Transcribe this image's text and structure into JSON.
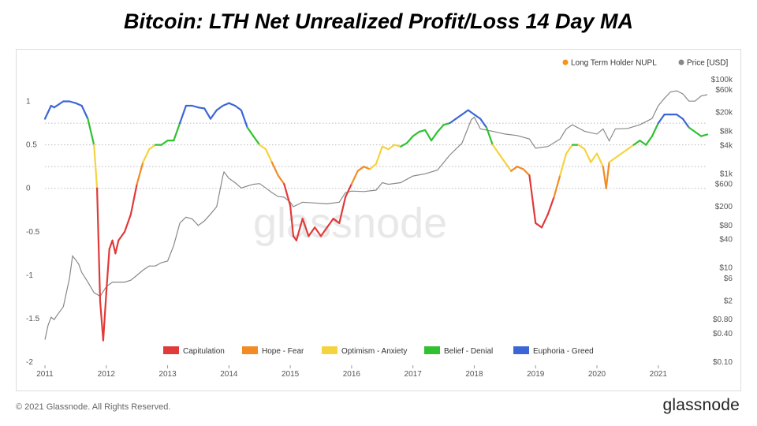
{
  "title": "Bitcoin: LTH Net Unrealized Profit/Loss 14 Day MA",
  "footer": {
    "copyright": "© 2021 Glassnode. All Rights Reserved.",
    "logo": "glassnode"
  },
  "watermark": "glassnode",
  "chart_data": {
    "type": "line",
    "left_axis": {
      "ticks": [
        1,
        0.5,
        0,
        -0.5,
        -1,
        -1.5,
        -2
      ],
      "tick_labels": [
        "1",
        "0.5",
        "0",
        "-0.5",
        "-1",
        "-1.5",
        "-2"
      ],
      "range": [
        -2,
        1.25
      ]
    },
    "right_axis": {
      "scale": "log",
      "tick_values": [
        100000,
        60000,
        20000,
        8000,
        4000,
        1000,
        600,
        200,
        80,
        40,
        10,
        6,
        2,
        0.8,
        0.4,
        0.1
      ],
      "tick_labels": [
        "$100k",
        "$60k",
        "$20k",
        "$8k",
        "$4k",
        "$1k",
        "$600",
        "$200",
        "$80",
        "$40",
        "$10",
        "$6",
        "$2",
        "$0.80",
        "$0.40",
        "$0.10"
      ],
      "range": [
        0.1,
        100000
      ]
    },
    "x_axis": {
      "tick_labels": [
        "2011",
        "2012",
        "2013",
        "2014",
        "2015",
        "2016",
        "2017",
        "2018",
        "2019",
        "2020",
        "2021"
      ],
      "range": [
        2011.0,
        2021.8
      ]
    },
    "dotted_levels": [
      0.75,
      0.5,
      0.25,
      0
    ],
    "top_legend": [
      {
        "label": "Long Term Holder NUPL",
        "color": "#f7931a"
      },
      {
        "label": "Price [USD]",
        "color": "#888888"
      }
    ],
    "zones": [
      {
        "label": "Capitulation",
        "color": "#e03a3a",
        "min": -10,
        "max": 0
      },
      {
        "label": "Hope - Fear",
        "color": "#f28b24",
        "min": 0,
        "max": 0.25
      },
      {
        "label": "Optimism - Anxiety",
        "color": "#f5d33f",
        "min": 0.25,
        "max": 0.5
      },
      {
        "label": "Belief - Denial",
        "color": "#2fc12f",
        "min": 0.5,
        "max": 0.75
      },
      {
        "label": "Euphoria - Greed",
        "color": "#3b66d6",
        "min": 0.75,
        "max": 10
      }
    ],
    "series": [
      {
        "name": "Long Term Holder NUPL",
        "x": [
          2011.0,
          2011.1,
          2011.15,
          2011.3,
          2011.4,
          2011.5,
          2011.6,
          2011.7,
          2011.8,
          2011.85,
          2011.9,
          2011.95,
          2012.0,
          2012.05,
          2012.1,
          2012.15,
          2012.2,
          2012.3,
          2012.4,
          2012.5,
          2012.6,
          2012.7,
          2012.8,
          2012.9,
          2013.0,
          2013.1,
          2013.2,
          2013.3,
          2013.4,
          2013.5,
          2013.6,
          2013.7,
          2013.8,
          2013.9,
          2014.0,
          2014.1,
          2014.2,
          2014.3,
          2014.4,
          2014.5,
          2014.6,
          2014.7,
          2014.8,
          2014.9,
          2015.0,
          2015.05,
          2015.1,
          2015.2,
          2015.3,
          2015.4,
          2015.5,
          2015.6,
          2015.7,
          2015.8,
          2015.9,
          2016.0,
          2016.1,
          2016.2,
          2016.3,
          2016.4,
          2016.5,
          2016.6,
          2016.7,
          2016.8,
          2016.9,
          2017.0,
          2017.1,
          2017.2,
          2017.3,
          2017.4,
          2017.5,
          2017.6,
          2017.7,
          2017.8,
          2017.9,
          2018.0,
          2018.1,
          2018.2,
          2018.3,
          2018.4,
          2018.5,
          2018.6,
          2018.7,
          2018.8,
          2018.9,
          2019.0,
          2019.1,
          2019.2,
          2019.3,
          2019.4,
          2019.5,
          2019.6,
          2019.7,
          2019.8,
          2019.9,
          2020.0,
          2020.1,
          2020.15,
          2020.2,
          2020.3,
          2020.4,
          2020.5,
          2020.6,
          2020.7,
          2020.8,
          2020.9,
          2021.0,
          2021.1,
          2021.2,
          2021.3,
          2021.4,
          2021.5,
          2021.6,
          2021.7,
          2021.8
        ],
        "values": [
          0.8,
          0.95,
          0.93,
          1.0,
          1.0,
          0.98,
          0.95,
          0.8,
          0.5,
          0.0,
          -1.3,
          -1.75,
          -1.2,
          -0.7,
          -0.6,
          -0.75,
          -0.6,
          -0.5,
          -0.3,
          0.05,
          0.3,
          0.45,
          0.5,
          0.5,
          0.55,
          0.55,
          0.75,
          0.95,
          0.95,
          0.93,
          0.92,
          0.8,
          0.9,
          0.95,
          0.98,
          0.95,
          0.9,
          0.7,
          0.6,
          0.5,
          0.45,
          0.3,
          0.15,
          0.05,
          -0.2,
          -0.55,
          -0.6,
          -0.35,
          -0.55,
          -0.45,
          -0.55,
          -0.45,
          -0.35,
          -0.4,
          -0.1,
          0.05,
          0.2,
          0.25,
          0.22,
          0.28,
          0.48,
          0.45,
          0.5,
          0.48,
          0.52,
          0.6,
          0.65,
          0.67,
          0.55,
          0.65,
          0.73,
          0.75,
          0.8,
          0.85,
          0.9,
          0.85,
          0.8,
          0.7,
          0.5,
          0.4,
          0.3,
          0.2,
          0.25,
          0.22,
          0.15,
          -0.4,
          -0.45,
          -0.3,
          -0.1,
          0.15,
          0.4,
          0.5,
          0.5,
          0.45,
          0.3,
          0.4,
          0.25,
          0.0,
          0.3,
          0.35,
          0.4,
          0.45,
          0.5,
          0.55,
          0.5,
          0.6,
          0.75,
          0.85,
          0.85,
          0.85,
          0.8,
          0.7,
          0.65,
          0.6,
          0.62
        ]
      },
      {
        "name": "Price [USD]",
        "x": [
          2011.0,
          2011.05,
          2011.1,
          2011.15,
          2011.2,
          2011.3,
          2011.4,
          2011.45,
          2011.5,
          2011.55,
          2011.6,
          2011.7,
          2011.8,
          2011.9,
          2012.0,
          2012.1,
          2012.2,
          2012.3,
          2012.4,
          2012.5,
          2012.6,
          2012.7,
          2012.8,
          2012.9,
          2013.0,
          2013.1,
          2013.2,
          2013.3,
          2013.4,
          2013.5,
          2013.6,
          2013.7,
          2013.8,
          2013.9,
          2013.92,
          2014.0,
          2014.1,
          2014.2,
          2014.3,
          2014.4,
          2014.5,
          2014.6,
          2014.7,
          2014.8,
          2014.9,
          2015.0,
          2015.05,
          2015.2,
          2015.4,
          2015.6,
          2015.8,
          2015.9,
          2016.0,
          2016.2,
          2016.4,
          2016.5,
          2016.6,
          2016.8,
          2017.0,
          2017.2,
          2017.4,
          2017.6,
          2017.8,
          2017.95,
          2018.0,
          2018.1,
          2018.3,
          2018.5,
          2018.7,
          2018.9,
          2019.0,
          2019.2,
          2019.4,
          2019.5,
          2019.6,
          2019.8,
          2020.0,
          2020.1,
          2020.2,
          2020.3,
          2020.5,
          2020.7,
          2020.9,
          2021.0,
          2021.1,
          2021.2,
          2021.3,
          2021.4,
          2021.5,
          2021.6,
          2021.7,
          2021.8
        ],
        "values": [
          0.3,
          0.6,
          0.9,
          0.8,
          1.0,
          1.5,
          6,
          18,
          15,
          12,
          8,
          5,
          3,
          2.5,
          4,
          5,
          5,
          5,
          5.5,
          7,
          9,
          11,
          11,
          13,
          14,
          30,
          90,
          120,
          110,
          80,
          100,
          140,
          200,
          900,
          1100,
          800,
          650,
          500,
          550,
          600,
          620,
          500,
          400,
          330,
          320,
          250,
          200,
          250,
          240,
          230,
          250,
          400,
          430,
          420,
          450,
          650,
          600,
          650,
          900,
          1000,
          1200,
          2500,
          4500,
          14000,
          16000,
          9000,
          8000,
          7000,
          6500,
          5500,
          3500,
          3800,
          5500,
          9000,
          11000,
          8000,
          7000,
          9000,
          5000,
          9000,
          9200,
          11000,
          15000,
          28000,
          40000,
          55000,
          58000,
          50000,
          35000,
          35000,
          45000,
          48000
        ]
      }
    ]
  }
}
